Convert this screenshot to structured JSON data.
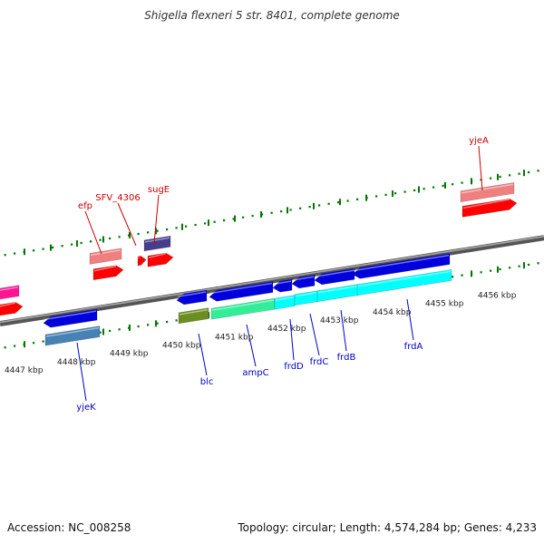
{
  "title": "Shigella flexneri 5 str. 8401, complete genome",
  "footer": {
    "accession": "Accession: NC_008258",
    "summary": "Topology: circular; Length: 4,574,284 bp; Genes: 4,233"
  },
  "axis": {
    "unit": "kbp",
    "ticks": [
      {
        "pos": 4447,
        "label": "4447 kbp"
      },
      {
        "pos": 4448,
        "label": "4448 kbp"
      },
      {
        "pos": 4449,
        "label": "4449 kbp"
      },
      {
        "pos": 4450,
        "label": "4450 kbp"
      },
      {
        "pos": 4451,
        "label": "4451 kbp"
      },
      {
        "pos": 4452,
        "label": "4452 kbp"
      },
      {
        "pos": 4453,
        "label": "4453 kbp"
      },
      {
        "pos": 4454,
        "label": "4454 kbp"
      },
      {
        "pos": 4455,
        "label": "4455 kbp"
      },
      {
        "pos": 4456,
        "label": "4456 kbp"
      }
    ]
  },
  "gene_labels": {
    "top": [
      "efp",
      "SFV_4306",
      "sugE",
      "yjeA"
    ],
    "bottom": [
      "yjeK",
      "blc",
      "ampC",
      "frdD",
      "frdC",
      "frdB",
      "frdA"
    ]
  },
  "colors": {
    "red": "#ff0000",
    "pink": "#f08080",
    "purple": "#483d8b",
    "blue": "#0000dd",
    "steelblue": "#4682b4",
    "olive": "#6b8e23",
    "green": "#33ee99",
    "cyan": "#00ffff",
    "magenta": "#ff1493",
    "tick": "#007700",
    "topLabel": "#cc0000",
    "bottomLabel": "#0000cc"
  }
}
